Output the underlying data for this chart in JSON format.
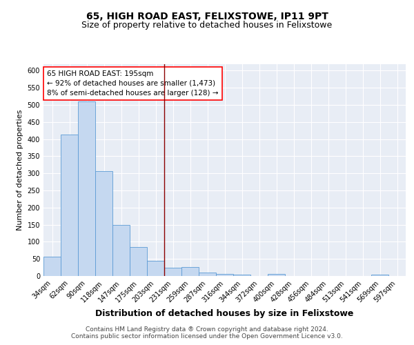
{
  "title1": "65, HIGH ROAD EAST, FELIXSTOWE, IP11 9PT",
  "title2": "Size of property relative to detached houses in Felixstowe",
  "xlabel": "Distribution of detached houses by size in Felixstowe",
  "ylabel": "Number of detached properties",
  "bar_labels": [
    "34sqm",
    "62sqm",
    "90sqm",
    "118sqm",
    "147sqm",
    "175sqm",
    "203sqm",
    "231sqm",
    "259sqm",
    "287sqm",
    "316sqm",
    "344sqm",
    "372sqm",
    "400sqm",
    "428sqm",
    "456sqm",
    "484sqm",
    "513sqm",
    "541sqm",
    "569sqm",
    "597sqm"
  ],
  "bar_values": [
    57,
    413,
    510,
    307,
    150,
    85,
    44,
    25,
    26,
    11,
    7,
    5,
    0,
    6,
    0,
    0,
    0,
    0,
    0,
    5,
    0
  ],
  "bar_color": "#c5d8f0",
  "bar_edge_color": "#5b9bd5",
  "background_color": "#e8edf5",
  "grid_color": "#ffffff",
  "annotation_line1": "65 HIGH ROAD EAST: 195sqm",
  "annotation_line2": "← 92% of detached houses are smaller (1,473)",
  "annotation_line3": "8% of semi-detached houses are larger (128) →",
  "red_line_x": 6.5,
  "ylim": [
    0,
    620
  ],
  "yticks": [
    0,
    50,
    100,
    150,
    200,
    250,
    300,
    350,
    400,
    450,
    500,
    550,
    600
  ],
  "footer_text": "Contains HM Land Registry data ® Crown copyright and database right 2024.\nContains public sector information licensed under the Open Government Licence v3.0.",
  "title1_fontsize": 10,
  "title2_fontsize": 9,
  "xlabel_fontsize": 9,
  "ylabel_fontsize": 8,
  "tick_fontsize": 7,
  "annotation_fontsize": 7.5,
  "footer_fontsize": 6.5,
  "fig_facecolor": "#ffffff"
}
